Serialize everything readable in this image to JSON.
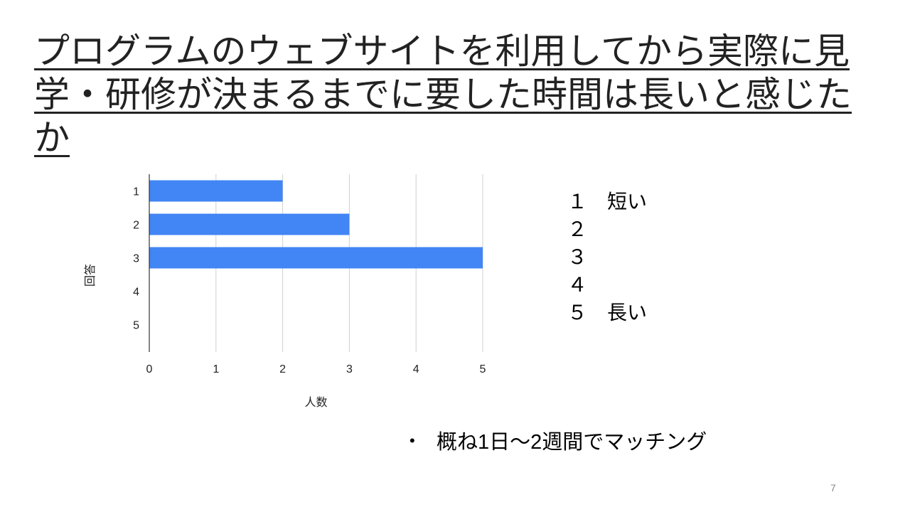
{
  "slide": {
    "title": "プログラムのウェブサイトを利用してから実際に見学・研修が決まるまでに要した時間は長いと感じたか",
    "page_number": "7"
  },
  "legend_items": [
    "１　短い",
    "２",
    "３",
    "４",
    "５　長い"
  ],
  "notes": [
    "概ね1日〜2週間でマッチング"
  ],
  "colors": {
    "bar": "#4285f4",
    "grid": "#d0d0d0",
    "axis": "#333333"
  },
  "chart_data": {
    "type": "bar",
    "orientation": "horizontal",
    "categories": [
      "1",
      "2",
      "3",
      "4",
      "5"
    ],
    "values": [
      2,
      3,
      5,
      0,
      0
    ],
    "xlabel": "人数",
    "ylabel": "回答",
    "xlim": [
      0,
      5
    ],
    "x_ticks": [
      "0",
      "1",
      "2",
      "3",
      "4",
      "5"
    ],
    "grid": true,
    "legend": "none"
  }
}
